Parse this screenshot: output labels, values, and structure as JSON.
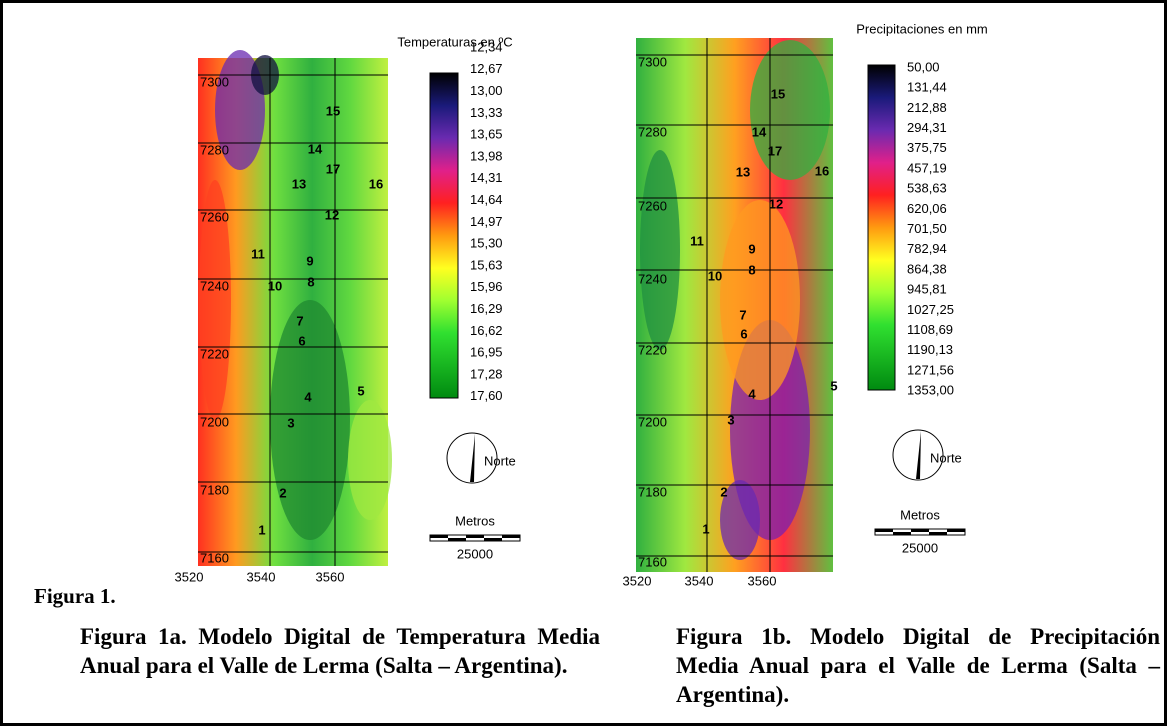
{
  "figure_label": "Figura 1.",
  "panels": [
    {
      "legend_title": "Temperaturas en ºC",
      "legend_labels": [
        "12,34",
        "12,67",
        "13,00",
        "13,33",
        "13,65",
        "13,98",
        "14,31",
        "14,64",
        "14,97",
        "15,30",
        "15,63",
        "15,96",
        "16,29",
        "16,62",
        "16,95",
        "17,28",
        "17,60"
      ],
      "y_labels": [
        "7300",
        "7280",
        "7260",
        "7240",
        "7220",
        "7200",
        "7180",
        "7160"
      ],
      "x_labels": [
        "3520",
        "3540",
        "3560"
      ],
      "stations": [
        "15",
        "14",
        "17",
        "13",
        "16",
        "12",
        "11",
        "9",
        "8",
        "10",
        "7",
        "6",
        "5",
        "4",
        "3",
        "2",
        "1"
      ],
      "north": "Norte",
      "scale_title": "Metros",
      "scale_value": "25000",
      "caption": "Figura 1a. Modelo Digital de Temperatura Media Anual para el Valle de Lerma (Salta – Argentina)."
    },
    {
      "legend_title": "Precipitaciones en mm",
      "legend_labels": [
        "50,00",
        "131,44",
        "212,88",
        "294,31",
        "375,75",
        "457,19",
        "538,63",
        "620,06",
        "701,50",
        "782,94",
        "864,38",
        "945,81",
        "1027,25",
        "1108,69",
        "1190,13",
        "1271,56",
        "1353,00"
      ],
      "y_labels": [
        "7300",
        "7280",
        "7260",
        "7240",
        "7220",
        "7200",
        "7180",
        "7160"
      ],
      "x_labels": [
        "3520",
        "3540",
        "3560"
      ],
      "stations": [
        "15",
        "14",
        "17",
        "13",
        "16",
        "12",
        "11",
        "9",
        "8",
        "10",
        "7",
        "6",
        "5",
        "4",
        "3",
        "2",
        "1"
      ],
      "north": "Norte",
      "scale_title": "Metros",
      "scale_value": "25000",
      "caption": "Figura 1b. Modelo Digital de Precipitación Media Anual para el Valle de Lerma (Salta – Argentina)."
    }
  ]
}
